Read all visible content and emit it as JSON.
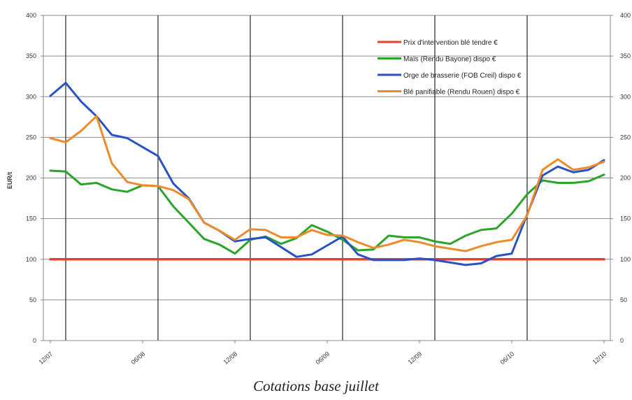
{
  "caption": "Cotations base juillet",
  "chart_data": {
    "type": "line",
    "ylabel": "EUR/t",
    "ylim": [
      0,
      400
    ],
    "yticks": [
      0,
      50,
      100,
      150,
      200,
      250,
      300,
      350,
      400
    ],
    "right_axis_ticks": [
      "0",
      "50",
      "100",
      "150",
      "200",
      "250",
      "300",
      "350",
      "400"
    ],
    "x_tick_labels": [
      "12/07",
      "06/08",
      "12/08",
      "06/09",
      "12/09",
      "06/10",
      "12/10"
    ],
    "x_tick_positions": [
      0,
      6,
      12,
      18,
      24,
      30,
      36
    ],
    "x_count": 37,
    "vertical_markers": [
      1,
      7,
      13,
      19,
      25,
      31
    ],
    "grid": true,
    "legend_position": "top-right",
    "series": [
      {
        "name": "Prix d'intervention blé tendre €",
        "color": "#e8412f",
        "values": [
          100,
          100,
          100,
          100,
          100,
          100,
          100,
          100,
          100,
          100,
          100,
          100,
          100,
          100,
          100,
          100,
          100,
          100,
          100,
          100,
          100,
          100,
          100,
          100,
          100,
          100,
          100,
          100,
          100,
          100,
          100,
          100,
          100,
          100,
          100,
          100,
          100
        ]
      },
      {
        "name": "Maïs (Rendu Bayone) dispo €",
        "color": "#2aa52a",
        "values": [
          209,
          208,
          192,
          194,
          186,
          183,
          191,
          190,
          165,
          145,
          125,
          118,
          107,
          124,
          128,
          119,
          126,
          142,
          134,
          124,
          111,
          112,
          129,
          127,
          127,
          122,
          119,
          129,
          136,
          138,
          156,
          180,
          197,
          194,
          194,
          196,
          204
        ]
      },
      {
        "name": "Orge de brasserie (FOB Creil) dispo €",
        "color": "#2a52c7",
        "values": [
          301,
          317,
          294,
          276,
          253,
          249,
          238,
          227,
          193,
          175,
          145,
          135,
          122,
          125,
          127,
          115,
          103,
          106,
          117,
          128,
          106,
          99,
          99,
          99,
          101,
          99,
          96,
          93,
          95,
          104,
          107,
          155,
          203,
          214,
          207,
          210,
          222
        ]
      },
      {
        "name": "Blé panifiable (Rendu Rouen) dispo €",
        "color": "#ee8a2a",
        "values": [
          249,
          244,
          258,
          276,
          218,
          195,
          191,
          190,
          185,
          174,
          145,
          135,
          124,
          137,
          136,
          127,
          127,
          136,
          130,
          129,
          121,
          114,
          118,
          124,
          121,
          116,
          113,
          110,
          116,
          121,
          124,
          154,
          210,
          223,
          210,
          213,
          220
        ]
      }
    ]
  }
}
